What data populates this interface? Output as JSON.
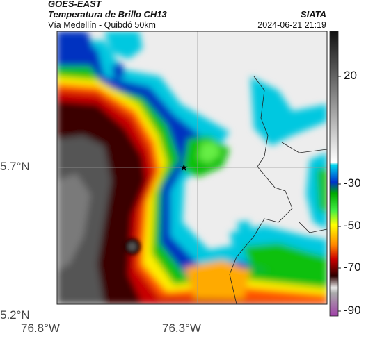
{
  "header": {
    "satellite": "GOES-EAST",
    "product": "Temperatura de Brillo CH13",
    "location": "Vía Medellín - Quibdó 50km",
    "agency": "SIATA",
    "datetime": "2024-06-21 21:19"
  },
  "axes": {
    "y_ticks": [
      "5.7°N",
      "5.2°N"
    ],
    "x_ticks": [
      "76.8°W",
      "76.3°W"
    ]
  },
  "colorbar": {
    "labels": [
      "20",
      "-30",
      "-50",
      "-70",
      "-90"
    ],
    "stops": [
      "#111111",
      "#ffffff",
      "#00c8e0",
      "#0022aa",
      "#00cc00",
      "#ffff00",
      "#ff6600",
      "#c80000",
      "#300000",
      "#dddddd",
      "#a040a0"
    ]
  },
  "marker": {
    "name": "star"
  }
}
